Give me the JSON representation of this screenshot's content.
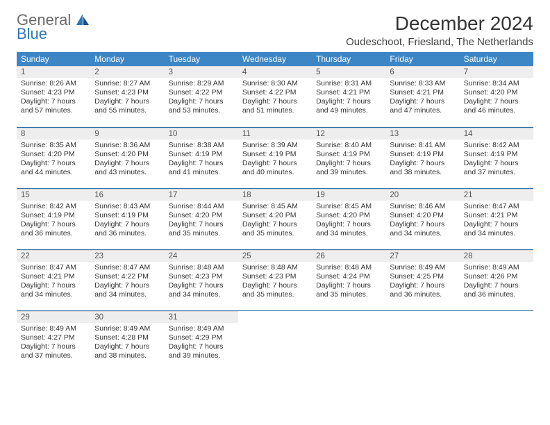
{
  "brand": {
    "word1": "General",
    "word2": "Blue"
  },
  "title": "December 2024",
  "location": "Oudeschoot, Friesland, The Netherlands",
  "colors": {
    "header_bg": "#3d86c6",
    "header_text": "#ffffff",
    "daynum_bg": "#eeeeee",
    "row_divider": "#2f6fa8",
    "logo_gray": "#6b6b6b",
    "logo_blue": "#2f77b6",
    "page_bg": "#ffffff",
    "body_text": "#333333"
  },
  "typography": {
    "month_title_fontsize_pt": 21,
    "location_fontsize_pt": 11,
    "weekday_fontsize_pt": 9,
    "cell_fontsize_pt": 8
  },
  "weekdays": [
    "Sunday",
    "Monday",
    "Tuesday",
    "Wednesday",
    "Thursday",
    "Friday",
    "Saturday"
  ],
  "weeks": [
    [
      {
        "n": "1",
        "sunrise": "Sunrise: 8:26 AM",
        "sunset": "Sunset: 4:23 PM",
        "daylight": "Daylight: 7 hours and 57 minutes."
      },
      {
        "n": "2",
        "sunrise": "Sunrise: 8:27 AM",
        "sunset": "Sunset: 4:23 PM",
        "daylight": "Daylight: 7 hours and 55 minutes."
      },
      {
        "n": "3",
        "sunrise": "Sunrise: 8:29 AM",
        "sunset": "Sunset: 4:22 PM",
        "daylight": "Daylight: 7 hours and 53 minutes."
      },
      {
        "n": "4",
        "sunrise": "Sunrise: 8:30 AM",
        "sunset": "Sunset: 4:22 PM",
        "daylight": "Daylight: 7 hours and 51 minutes."
      },
      {
        "n": "5",
        "sunrise": "Sunrise: 8:31 AM",
        "sunset": "Sunset: 4:21 PM",
        "daylight": "Daylight: 7 hours and 49 minutes."
      },
      {
        "n": "6",
        "sunrise": "Sunrise: 8:33 AM",
        "sunset": "Sunset: 4:21 PM",
        "daylight": "Daylight: 7 hours and 47 minutes."
      },
      {
        "n": "7",
        "sunrise": "Sunrise: 8:34 AM",
        "sunset": "Sunset: 4:20 PM",
        "daylight": "Daylight: 7 hours and 46 minutes."
      }
    ],
    [
      {
        "n": "8",
        "sunrise": "Sunrise: 8:35 AM",
        "sunset": "Sunset: 4:20 PM",
        "daylight": "Daylight: 7 hours and 44 minutes."
      },
      {
        "n": "9",
        "sunrise": "Sunrise: 8:36 AM",
        "sunset": "Sunset: 4:20 PM",
        "daylight": "Daylight: 7 hours and 43 minutes."
      },
      {
        "n": "10",
        "sunrise": "Sunrise: 8:38 AM",
        "sunset": "Sunset: 4:19 PM",
        "daylight": "Daylight: 7 hours and 41 minutes."
      },
      {
        "n": "11",
        "sunrise": "Sunrise: 8:39 AM",
        "sunset": "Sunset: 4:19 PM",
        "daylight": "Daylight: 7 hours and 40 minutes."
      },
      {
        "n": "12",
        "sunrise": "Sunrise: 8:40 AM",
        "sunset": "Sunset: 4:19 PM",
        "daylight": "Daylight: 7 hours and 39 minutes."
      },
      {
        "n": "13",
        "sunrise": "Sunrise: 8:41 AM",
        "sunset": "Sunset: 4:19 PM",
        "daylight": "Daylight: 7 hours and 38 minutes."
      },
      {
        "n": "14",
        "sunrise": "Sunrise: 8:42 AM",
        "sunset": "Sunset: 4:19 PM",
        "daylight": "Daylight: 7 hours and 37 minutes."
      }
    ],
    [
      {
        "n": "15",
        "sunrise": "Sunrise: 8:42 AM",
        "sunset": "Sunset: 4:19 PM",
        "daylight": "Daylight: 7 hours and 36 minutes."
      },
      {
        "n": "16",
        "sunrise": "Sunrise: 8:43 AM",
        "sunset": "Sunset: 4:19 PM",
        "daylight": "Daylight: 7 hours and 36 minutes."
      },
      {
        "n": "17",
        "sunrise": "Sunrise: 8:44 AM",
        "sunset": "Sunset: 4:20 PM",
        "daylight": "Daylight: 7 hours and 35 minutes."
      },
      {
        "n": "18",
        "sunrise": "Sunrise: 8:45 AM",
        "sunset": "Sunset: 4:20 PM",
        "daylight": "Daylight: 7 hours and 35 minutes."
      },
      {
        "n": "19",
        "sunrise": "Sunrise: 8:45 AM",
        "sunset": "Sunset: 4:20 PM",
        "daylight": "Daylight: 7 hours and 34 minutes."
      },
      {
        "n": "20",
        "sunrise": "Sunrise: 8:46 AM",
        "sunset": "Sunset: 4:20 PM",
        "daylight": "Daylight: 7 hours and 34 minutes."
      },
      {
        "n": "21",
        "sunrise": "Sunrise: 8:47 AM",
        "sunset": "Sunset: 4:21 PM",
        "daylight": "Daylight: 7 hours and 34 minutes."
      }
    ],
    [
      {
        "n": "22",
        "sunrise": "Sunrise: 8:47 AM",
        "sunset": "Sunset: 4:21 PM",
        "daylight": "Daylight: 7 hours and 34 minutes."
      },
      {
        "n": "23",
        "sunrise": "Sunrise: 8:47 AM",
        "sunset": "Sunset: 4:22 PM",
        "daylight": "Daylight: 7 hours and 34 minutes."
      },
      {
        "n": "24",
        "sunrise": "Sunrise: 8:48 AM",
        "sunset": "Sunset: 4:23 PM",
        "daylight": "Daylight: 7 hours and 34 minutes."
      },
      {
        "n": "25",
        "sunrise": "Sunrise: 8:48 AM",
        "sunset": "Sunset: 4:23 PM",
        "daylight": "Daylight: 7 hours and 35 minutes."
      },
      {
        "n": "26",
        "sunrise": "Sunrise: 8:48 AM",
        "sunset": "Sunset: 4:24 PM",
        "daylight": "Daylight: 7 hours and 35 minutes."
      },
      {
        "n": "27",
        "sunrise": "Sunrise: 8:49 AM",
        "sunset": "Sunset: 4:25 PM",
        "daylight": "Daylight: 7 hours and 36 minutes."
      },
      {
        "n": "28",
        "sunrise": "Sunrise: 8:49 AM",
        "sunset": "Sunset: 4:26 PM",
        "daylight": "Daylight: 7 hours and 36 minutes."
      }
    ],
    [
      {
        "n": "29",
        "sunrise": "Sunrise: 8:49 AM",
        "sunset": "Sunset: 4:27 PM",
        "daylight": "Daylight: 7 hours and 37 minutes."
      },
      {
        "n": "30",
        "sunrise": "Sunrise: 8:49 AM",
        "sunset": "Sunset: 4:28 PM",
        "daylight": "Daylight: 7 hours and 38 minutes."
      },
      {
        "n": "31",
        "sunrise": "Sunrise: 8:49 AM",
        "sunset": "Sunset: 4:29 PM",
        "daylight": "Daylight: 7 hours and 39 minutes."
      },
      null,
      null,
      null,
      null
    ]
  ]
}
